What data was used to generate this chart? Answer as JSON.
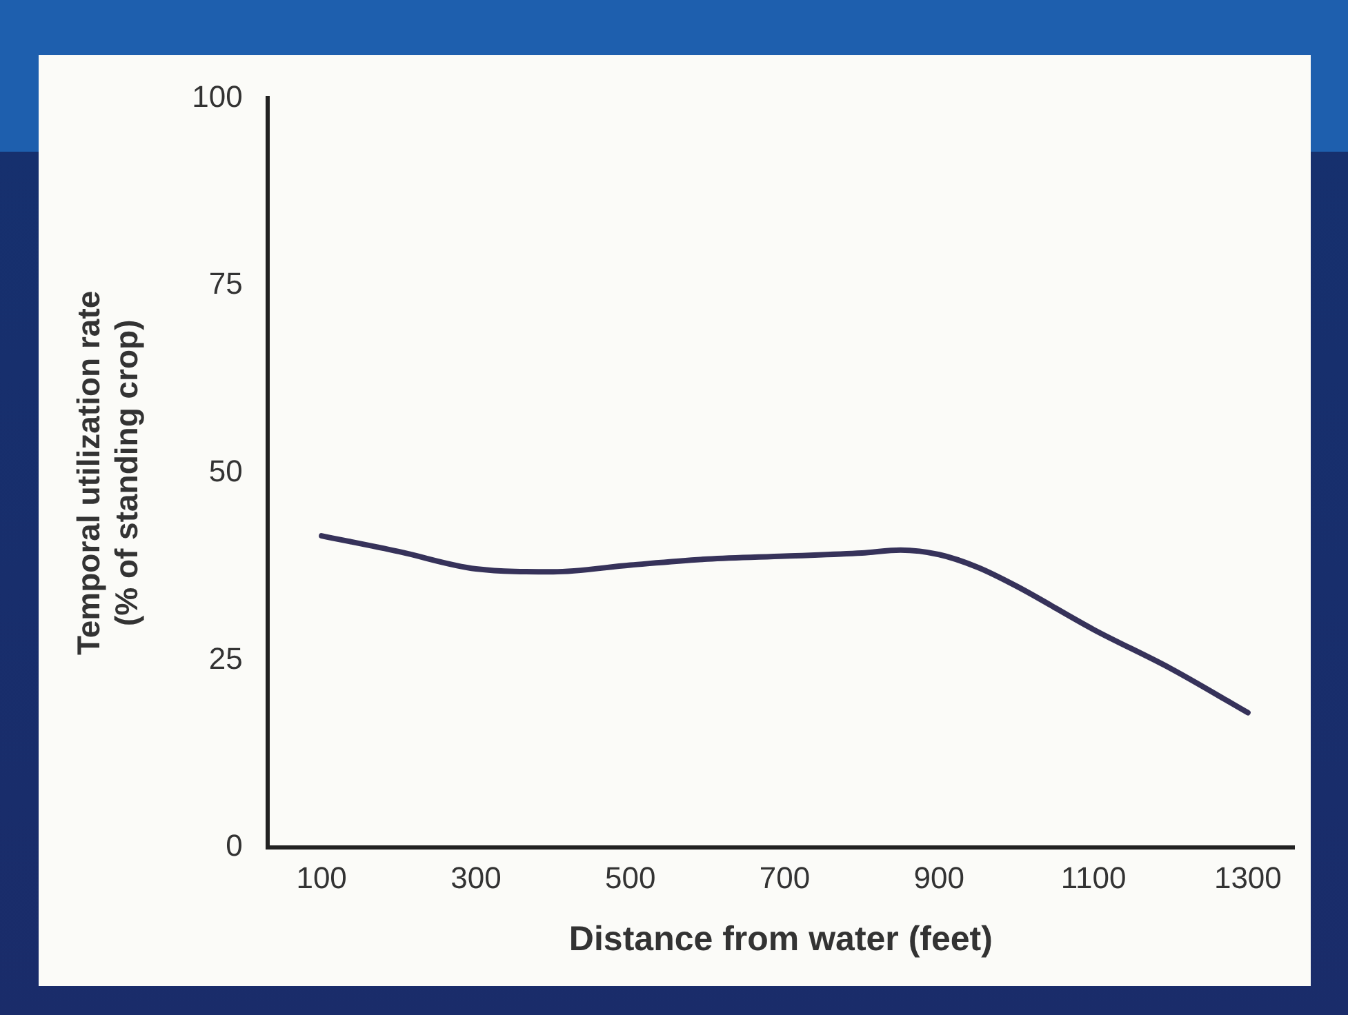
{
  "chart_data": {
    "type": "line",
    "xlabel": "Distance from water (feet)",
    "ylabel": "Temporal utilization rate\n(% of standing crop)",
    "series": [
      {
        "color": "#36325a",
        "x": [
          100,
          200,
          300,
          400,
          500,
          600,
          700,
          800,
          850,
          900,
          950,
          1000,
          1100,
          1200,
          1300
        ],
        "values": [
          41.6,
          39.5,
          37.2,
          36.8,
          37.7,
          38.5,
          38.9,
          39.3,
          39.7,
          39.1,
          37.4,
          34.9,
          29.1,
          23.9,
          18.0
        ]
      }
    ],
    "xlim": [
      30,
      1360
    ],
    "xticks": [
      100,
      300,
      500,
      700,
      900,
      1100,
      1300
    ],
    "ylim": [
      0,
      100
    ],
    "yticks": [
      0,
      25,
      50,
      75,
      100
    ],
    "grid": false,
    "legend": false,
    "marker": "none",
    "line_style": "solid"
  }
}
